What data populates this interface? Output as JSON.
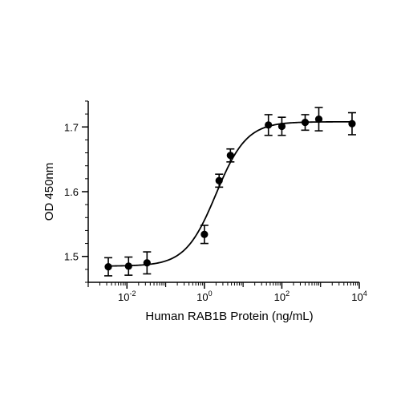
{
  "chart_data": {
    "type": "scatter",
    "title": "",
    "xlabel": "Human RAB1B Protein (ng/mL)",
    "ylabel": "OD 450nm",
    "x_scale": "log10",
    "xlim": [
      0.001,
      10000
    ],
    "ylim": [
      1.46,
      1.74
    ],
    "x_major_ticks": [
      0.01,
      1,
      100,
      10000
    ],
    "x_tick_labels": [
      {
        "base": "10",
        "exp": "-2"
      },
      {
        "base": "10",
        "exp": "0"
      },
      {
        "base": "10",
        "exp": "2"
      },
      {
        "base": "10",
        "exp": "4"
      }
    ],
    "y_ticks": [
      1.5,
      1.6,
      1.7
    ],
    "y_tick_labels": [
      "1.5",
      "1.6",
      "1.7"
    ],
    "grid": false,
    "legend": "none",
    "series": [
      {
        "x": [
          0.0033,
          0.011,
          0.033,
          1.0,
          2.4,
          4.7,
          45,
          100,
          400,
          900,
          6500
        ],
        "y": [
          1.484,
          1.485,
          1.49,
          1.534,
          1.617,
          1.656,
          1.703,
          1.701,
          1.707,
          1.712,
          1.705
        ],
        "error": [
          0.014,
          0.014,
          0.017,
          0.014,
          0.01,
          0.01,
          0.016,
          0.014,
          0.012,
          0.018,
          0.017
        ],
        "color": "#000000"
      }
    ],
    "fit": {
      "model": "4PL",
      "bottom": 1.485,
      "top": 1.708,
      "ec50": 2.0,
      "hill": 1.1,
      "color": "#000000"
    }
  }
}
